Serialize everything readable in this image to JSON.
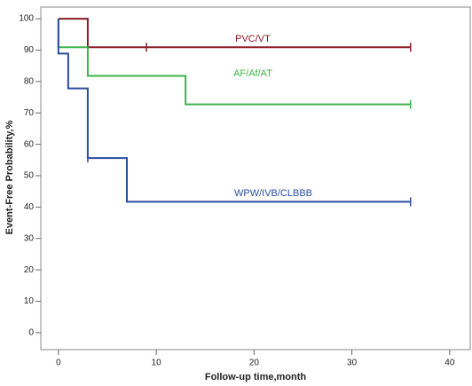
{
  "chart_data": {
    "type": "step",
    "xlabel": "Follow-up time,month",
    "ylabel": "Event-Free Probability,%",
    "xlim": [
      -1.8,
      42.1
    ],
    "ylim": [
      -5.4,
      103.7
    ],
    "xticks": [
      0,
      10,
      20,
      30,
      40
    ],
    "yticks": [
      0,
      10,
      20,
      30,
      40,
      50,
      60,
      70,
      80,
      90,
      100
    ],
    "grid": false,
    "series": [
      {
        "name": "PVC/VT",
        "color": "#8b1c24",
        "x": [
          0,
          3,
          36
        ],
        "values": [
          100,
          90.9,
          90.9
        ],
        "censored_x": [
          9,
          36
        ],
        "censored_values": [
          90.9,
          90.9
        ]
      },
      {
        "name": "AF/Af/AT",
        "color": "#3cb44a",
        "x": [
          0,
          0,
          3,
          13,
          36
        ],
        "values": [
          100,
          90.9,
          81.8,
          72.7,
          72.7
        ],
        "censored_x": [
          36
        ],
        "censored_values": [
          72.7
        ]
      },
      {
        "name": "WPW/IVB/CLBBB",
        "color": "#2b4c9f",
        "x": [
          0,
          0,
          1,
          3,
          7,
          36
        ],
        "values": [
          100,
          88.9,
          77.8,
          55.6,
          41.7,
          41.7
        ],
        "censored_x": [
          3,
          36
        ],
        "censored_values": [
          55.6,
          41.7
        ]
      }
    ]
  }
}
